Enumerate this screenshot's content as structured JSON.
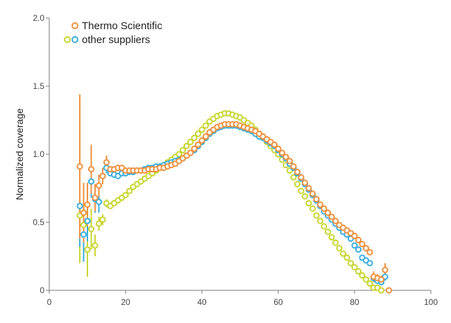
{
  "chart_data": {
    "type": "scatter",
    "title": "",
    "xlabel": "",
    "ylabel": "Normalized coverage",
    "xlim": [
      0,
      100
    ],
    "ylim": [
      0,
      2.0
    ],
    "x_ticks": [
      "0",
      "20",
      "40",
      "60",
      "80",
      "100"
    ],
    "y_ticks": [
      "0",
      "0.5",
      "1.0",
      "1.5",
      "2.0"
    ],
    "grid": false,
    "legend_position": "top-left",
    "legend": [
      {
        "label": "Thermo Scientific",
        "colors": [
          "#f0923f"
        ]
      },
      {
        "label": "other suppliers",
        "colors": [
          "#c9d631",
          "#3aaee0"
        ]
      }
    ],
    "series": [
      {
        "name": "Thermo Scientific",
        "color": "#f0923f",
        "points": [
          [
            8,
            0.91,
            0.53
          ],
          [
            9,
            0.57,
            0.22
          ],
          [
            10,
            0.63,
            0.16
          ],
          [
            11,
            0.89,
            0.18
          ],
          [
            12,
            0.68,
            0.1
          ],
          [
            13,
            0.77,
            0.08
          ],
          [
            14,
            0.84,
            0.06
          ],
          [
            15,
            0.94,
            0.05
          ],
          [
            16,
            0.89,
            0
          ],
          [
            17,
            0.89,
            0
          ],
          [
            18,
            0.9,
            0
          ],
          [
            19,
            0.9,
            0
          ],
          [
            20,
            0.88,
            0
          ],
          [
            21,
            0.88,
            0
          ],
          [
            22,
            0.88,
            0
          ],
          [
            23,
            0.88,
            0
          ],
          [
            24,
            0.88,
            0
          ],
          [
            25,
            0.88,
            0
          ],
          [
            26,
            0.89,
            0
          ],
          [
            27,
            0.89,
            0
          ],
          [
            28,
            0.89,
            0
          ],
          [
            29,
            0.9,
            0
          ],
          [
            30,
            0.9,
            0
          ],
          [
            31,
            0.91,
            0
          ],
          [
            32,
            0.92,
            0
          ],
          [
            33,
            0.93,
            0
          ],
          [
            34,
            0.95,
            0
          ],
          [
            35,
            0.97,
            0
          ],
          [
            36,
            0.99,
            0
          ],
          [
            37,
            1.01,
            0
          ],
          [
            38,
            1.04,
            0
          ],
          [
            39,
            1.07,
            0
          ],
          [
            40,
            1.1,
            0
          ],
          [
            41,
            1.13,
            0
          ],
          [
            42,
            1.16,
            0
          ],
          [
            43,
            1.18,
            0
          ],
          [
            44,
            1.2,
            0
          ],
          [
            45,
            1.21,
            0
          ],
          [
            46,
            1.22,
            0
          ],
          [
            47,
            1.22,
            0
          ],
          [
            48,
            1.22,
            0
          ],
          [
            49,
            1.22,
            0
          ],
          [
            50,
            1.21,
            0
          ],
          [
            51,
            1.2,
            0
          ],
          [
            52,
            1.19,
            0
          ],
          [
            53,
            1.18,
            0
          ],
          [
            54,
            1.17,
            0
          ],
          [
            55,
            1.15,
            0
          ],
          [
            56,
            1.13,
            0
          ],
          [
            57,
            1.11,
            0
          ],
          [
            58,
            1.09,
            0
          ],
          [
            59,
            1.07,
            0
          ],
          [
            60,
            1.04,
            0
          ],
          [
            61,
            1.01,
            0
          ],
          [
            62,
            0.98,
            0
          ],
          [
            63,
            0.95,
            0
          ],
          [
            64,
            0.91,
            0
          ],
          [
            65,
            0.87,
            0
          ],
          [
            66,
            0.83,
            0
          ],
          [
            67,
            0.79,
            0
          ],
          [
            68,
            0.75,
            0
          ],
          [
            69,
            0.71,
            0
          ],
          [
            70,
            0.67,
            0
          ],
          [
            71,
            0.63,
            0
          ],
          [
            72,
            0.6,
            0
          ],
          [
            73,
            0.57,
            0
          ],
          [
            74,
            0.54,
            0
          ],
          [
            75,
            0.51,
            0
          ],
          [
            76,
            0.48,
            0
          ],
          [
            77,
            0.46,
            0
          ],
          [
            78,
            0.44,
            0
          ],
          [
            79,
            0.42,
            0
          ],
          [
            80,
            0.4,
            0
          ],
          [
            81,
            0.37,
            0
          ],
          [
            82,
            0.34,
            0
          ],
          [
            83,
            0.31,
            0
          ],
          [
            84,
            0.28,
            0
          ],
          [
            85,
            0.1,
            0.04
          ],
          [
            86,
            0.09,
            0.03
          ],
          [
            87,
            0.08,
            0.03
          ],
          [
            88,
            0.15,
            0.05
          ],
          [
            89,
            0.0,
            0
          ]
        ]
      },
      {
        "name": "other suppliers (blue)",
        "color": "#3aaee0",
        "points": [
          [
            8,
            0.62,
            0.3
          ],
          [
            9,
            0.41,
            0.2
          ],
          [
            10,
            0.51,
            0.15
          ],
          [
            11,
            0.8,
            0.12
          ],
          [
            12,
            0.67,
            0.1
          ],
          [
            13,
            0.65,
            0.08
          ],
          [
            14,
            0.84,
            0.06
          ],
          [
            15,
            0.9,
            0.04
          ],
          [
            16,
            0.86,
            0
          ],
          [
            17,
            0.85,
            0
          ],
          [
            18,
            0.84,
            0
          ],
          [
            19,
            0.86,
            0
          ],
          [
            20,
            0.86,
            0
          ],
          [
            21,
            0.87,
            0
          ],
          [
            22,
            0.87,
            0
          ],
          [
            23,
            0.88,
            0
          ],
          [
            24,
            0.88,
            0
          ],
          [
            25,
            0.89,
            0
          ],
          [
            26,
            0.9,
            0
          ],
          [
            27,
            0.9,
            0
          ],
          [
            28,
            0.91,
            0
          ],
          [
            29,
            0.91,
            0
          ],
          [
            30,
            0.92,
            0
          ],
          [
            31,
            0.93,
            0
          ],
          [
            32,
            0.94,
            0
          ],
          [
            33,
            0.95,
            0
          ],
          [
            34,
            0.96,
            0
          ],
          [
            35,
            0.97,
            0
          ],
          [
            36,
            0.99,
            0
          ],
          [
            37,
            1.01,
            0
          ],
          [
            38,
            1.03,
            0
          ],
          [
            39,
            1.06,
            0
          ],
          [
            40,
            1.09,
            0
          ],
          [
            41,
            1.12,
            0
          ],
          [
            42,
            1.15,
            0
          ],
          [
            43,
            1.17,
            0
          ],
          [
            44,
            1.19,
            0
          ],
          [
            45,
            1.2,
            0
          ],
          [
            46,
            1.21,
            0
          ],
          [
            47,
            1.21,
            0
          ],
          [
            48,
            1.21,
            0
          ],
          [
            49,
            1.21,
            0
          ],
          [
            50,
            1.2,
            0
          ],
          [
            51,
            1.19,
            0
          ],
          [
            52,
            1.18,
            0
          ],
          [
            53,
            1.17,
            0
          ],
          [
            54,
            1.15,
            0
          ],
          [
            55,
            1.13,
            0
          ],
          [
            56,
            1.12,
            0
          ],
          [
            57,
            1.1,
            0
          ],
          [
            58,
            1.08,
            0
          ],
          [
            59,
            1.06,
            0
          ],
          [
            60,
            1.03,
            0
          ],
          [
            61,
            1.0,
            0
          ],
          [
            62,
            0.97,
            0
          ],
          [
            63,
            0.93,
            0
          ],
          [
            64,
            0.9,
            0
          ],
          [
            65,
            0.86,
            0
          ],
          [
            66,
            0.82,
            0
          ],
          [
            67,
            0.78,
            0
          ],
          [
            68,
            0.74,
            0
          ],
          [
            69,
            0.7,
            0
          ],
          [
            70,
            0.66,
            0
          ],
          [
            71,
            0.62,
            0
          ],
          [
            72,
            0.58,
            0
          ],
          [
            73,
            0.55,
            0
          ],
          [
            74,
            0.52,
            0
          ],
          [
            75,
            0.49,
            0
          ],
          [
            76,
            0.46,
            0
          ],
          [
            77,
            0.43,
            0
          ],
          [
            78,
            0.41,
            0
          ],
          [
            79,
            0.38,
            0
          ],
          [
            80,
            0.33,
            0
          ],
          [
            81,
            0.3,
            0
          ],
          [
            82,
            0.24,
            0
          ],
          [
            83,
            0.22,
            0
          ],
          [
            84,
            0.2,
            0
          ],
          [
            85,
            0.09,
            0.03
          ],
          [
            86,
            0.07,
            0.02
          ],
          [
            87,
            0.06,
            0.02
          ],
          [
            88,
            0.1,
            0.03
          ]
        ]
      },
      {
        "name": "other suppliers (yellow-green)",
        "color": "#c9d631",
        "points": [
          [
            8,
            0.55,
            0.35
          ],
          [
            9,
            0.48,
            0.25
          ],
          [
            10,
            0.3,
            0.2
          ],
          [
            11,
            0.45,
            0.15
          ],
          [
            12,
            0.33,
            0.08
          ],
          [
            13,
            0.49,
            0.05
          ],
          [
            14,
            0.52,
            0.04
          ],
          [
            15,
            0.64,
            0.03
          ],
          [
            16,
            0.62,
            0
          ],
          [
            17,
            0.64,
            0
          ],
          [
            18,
            0.66,
            0
          ],
          [
            19,
            0.68,
            0
          ],
          [
            20,
            0.7,
            0
          ],
          [
            21,
            0.73,
            0
          ],
          [
            22,
            0.76,
            0
          ],
          [
            23,
            0.78,
            0
          ],
          [
            24,
            0.8,
            0
          ],
          [
            25,
            0.82,
            0
          ],
          [
            26,
            0.84,
            0
          ],
          [
            27,
            0.86,
            0
          ],
          [
            28,
            0.88,
            0
          ],
          [
            29,
            0.9,
            0
          ],
          [
            30,
            0.92,
            0
          ],
          [
            31,
            0.94,
            0
          ],
          [
            32,
            0.96,
            0
          ],
          [
            33,
            0.98,
            0
          ],
          [
            34,
            1.0,
            0
          ],
          [
            35,
            1.03,
            0
          ],
          [
            36,
            1.06,
            0
          ],
          [
            37,
            1.09,
            0
          ],
          [
            38,
            1.12,
            0
          ],
          [
            39,
            1.15,
            0
          ],
          [
            40,
            1.18,
            0
          ],
          [
            41,
            1.21,
            0
          ],
          [
            42,
            1.24,
            0
          ],
          [
            43,
            1.26,
            0
          ],
          [
            44,
            1.28,
            0
          ],
          [
            45,
            1.29,
            0
          ],
          [
            46,
            1.3,
            0
          ],
          [
            47,
            1.3,
            0
          ],
          [
            48,
            1.29,
            0
          ],
          [
            49,
            1.28,
            0
          ],
          [
            50,
            1.27,
            0
          ],
          [
            51,
            1.25,
            0
          ],
          [
            52,
            1.23,
            0
          ],
          [
            53,
            1.21,
            0
          ],
          [
            54,
            1.18,
            0
          ],
          [
            55,
            1.15,
            0
          ],
          [
            56,
            1.12,
            0
          ],
          [
            57,
            1.09,
            0
          ],
          [
            58,
            1.06,
            0
          ],
          [
            59,
            1.03,
            0
          ],
          [
            60,
            1.0,
            0
          ],
          [
            61,
            0.96,
            0
          ],
          [
            62,
            0.92,
            0
          ],
          [
            63,
            0.88,
            0
          ],
          [
            64,
            0.83,
            0
          ],
          [
            65,
            0.78,
            0
          ],
          [
            66,
            0.73,
            0
          ],
          [
            67,
            0.69,
            0
          ],
          [
            68,
            0.64,
            0
          ],
          [
            69,
            0.6,
            0
          ],
          [
            70,
            0.55,
            0
          ],
          [
            71,
            0.51,
            0
          ],
          [
            72,
            0.47,
            0
          ],
          [
            73,
            0.43,
            0
          ],
          [
            74,
            0.39,
            0
          ],
          [
            75,
            0.35,
            0
          ],
          [
            76,
            0.31,
            0
          ],
          [
            77,
            0.27,
            0
          ],
          [
            78,
            0.24,
            0
          ],
          [
            79,
            0.2,
            0
          ],
          [
            80,
            0.17,
            0
          ],
          [
            81,
            0.14,
            0
          ],
          [
            82,
            0.11,
            0
          ],
          [
            83,
            0.08,
            0
          ],
          [
            84,
            0.05,
            0
          ],
          [
            85,
            0.02,
            0.02
          ],
          [
            86,
            0.02,
            0.02
          ],
          [
            87,
            0.0,
            0
          ]
        ]
      }
    ]
  }
}
